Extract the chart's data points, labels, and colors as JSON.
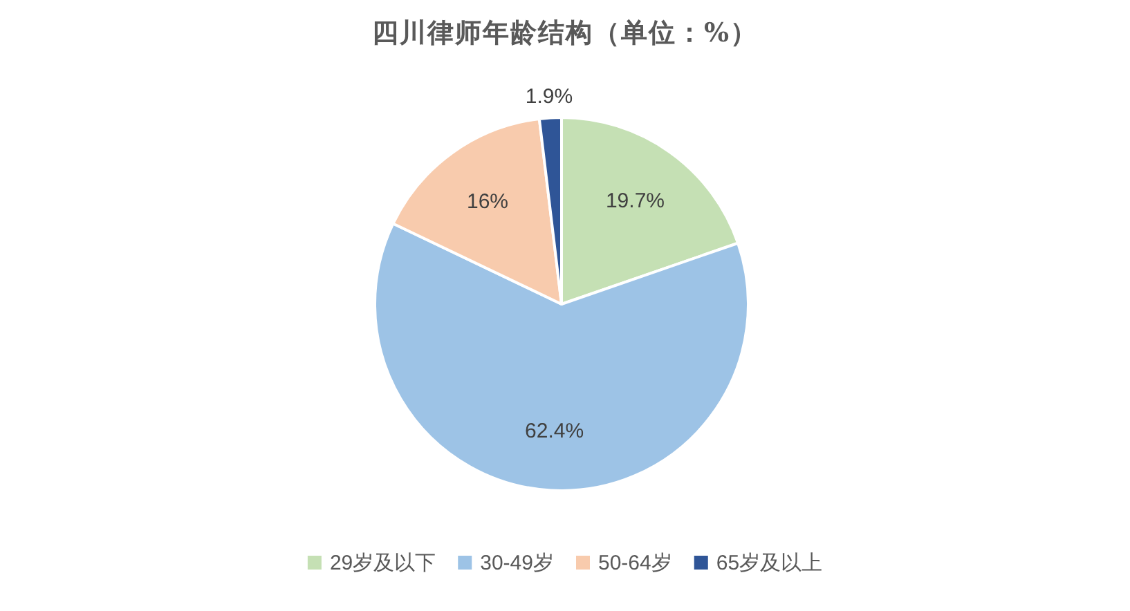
{
  "chart_data": {
    "type": "pie",
    "title": "四川律师年龄结构（单位：%）",
    "categories": [
      "29岁及以下",
      "30-49岁",
      "50-64岁",
      "65岁及以上"
    ],
    "values": [
      19.7,
      62.4,
      16,
      1.9
    ],
    "colors": [
      "#c5e0b4",
      "#9dc3e6",
      "#f8cbad",
      "#2f5597"
    ],
    "value_labels": [
      "19.7%",
      "62.4%",
      "16%",
      "1.9%"
    ],
    "legend": "bottom"
  }
}
